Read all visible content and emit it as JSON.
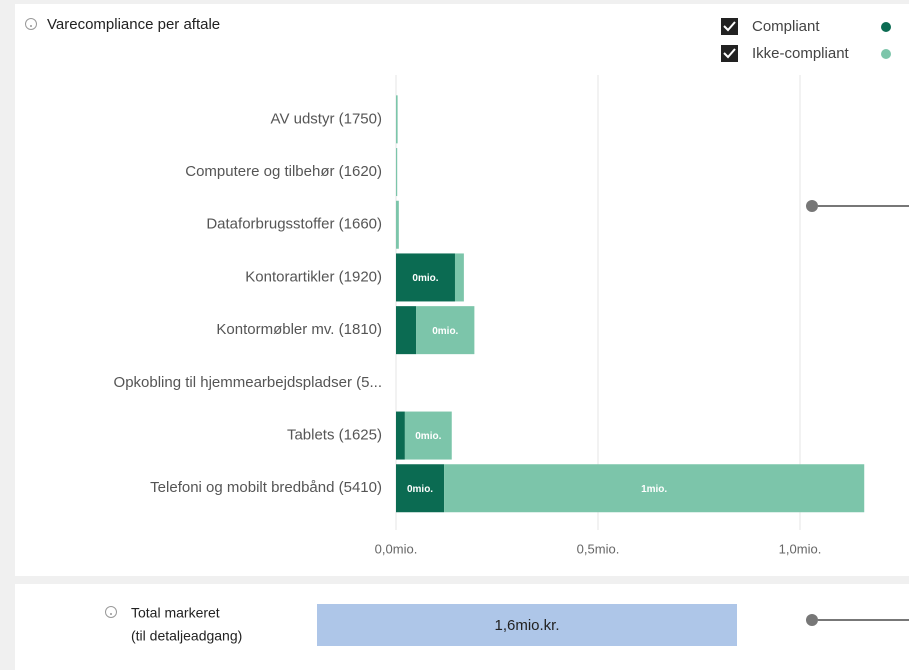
{
  "chart_data": {
    "type": "stacked-barh",
    "title": "Varecompliance per aftale",
    "categories": [
      "AV udstyr (1750)",
      "Computere og tilbehør (1620)",
      "Dataforbrugsstoffer (1660)",
      "Kontorartikler (1920)",
      "Kontormøbler mv. (1810)",
      "Opkobling til hjemmearbejdspladser (5...",
      "Tablets (1625)",
      "Telefoni og mobilt bredbånd (5410)"
    ],
    "series": [
      {
        "name": "Compliant",
        "color": "#0b6b52",
        "values": [
          0,
          0,
          0,
          0.146,
          0.05,
          0,
          0.022,
          0.119
        ],
        "value_labels": [
          null,
          null,
          null,
          "0mio.",
          null,
          null,
          null,
          "0mio."
        ]
      },
      {
        "name": "Ikke-compliant",
        "color": "#7cc5aa",
        "values": [
          0.004,
          0.003,
          0.007,
          0.022,
          0.144,
          0,
          0.116,
          1.04
        ],
        "value_labels": [
          null,
          null,
          null,
          null,
          "0mio.",
          null,
          "0mio.",
          "1mio."
        ]
      }
    ],
    "xlim": [
      0,
      1.25
    ],
    "xticks": [
      {
        "value": 0,
        "label": "0,0mio."
      },
      {
        "value": 0.5,
        "label": "0,5mio."
      },
      {
        "value": 1.0,
        "label": "1,0mio."
      }
    ],
    "grid": true,
    "legend": "top-right"
  },
  "total": {
    "label": "Total markeret",
    "sublabel": "(til detaljeadgang)",
    "value_label": "1,6mio.kr."
  }
}
